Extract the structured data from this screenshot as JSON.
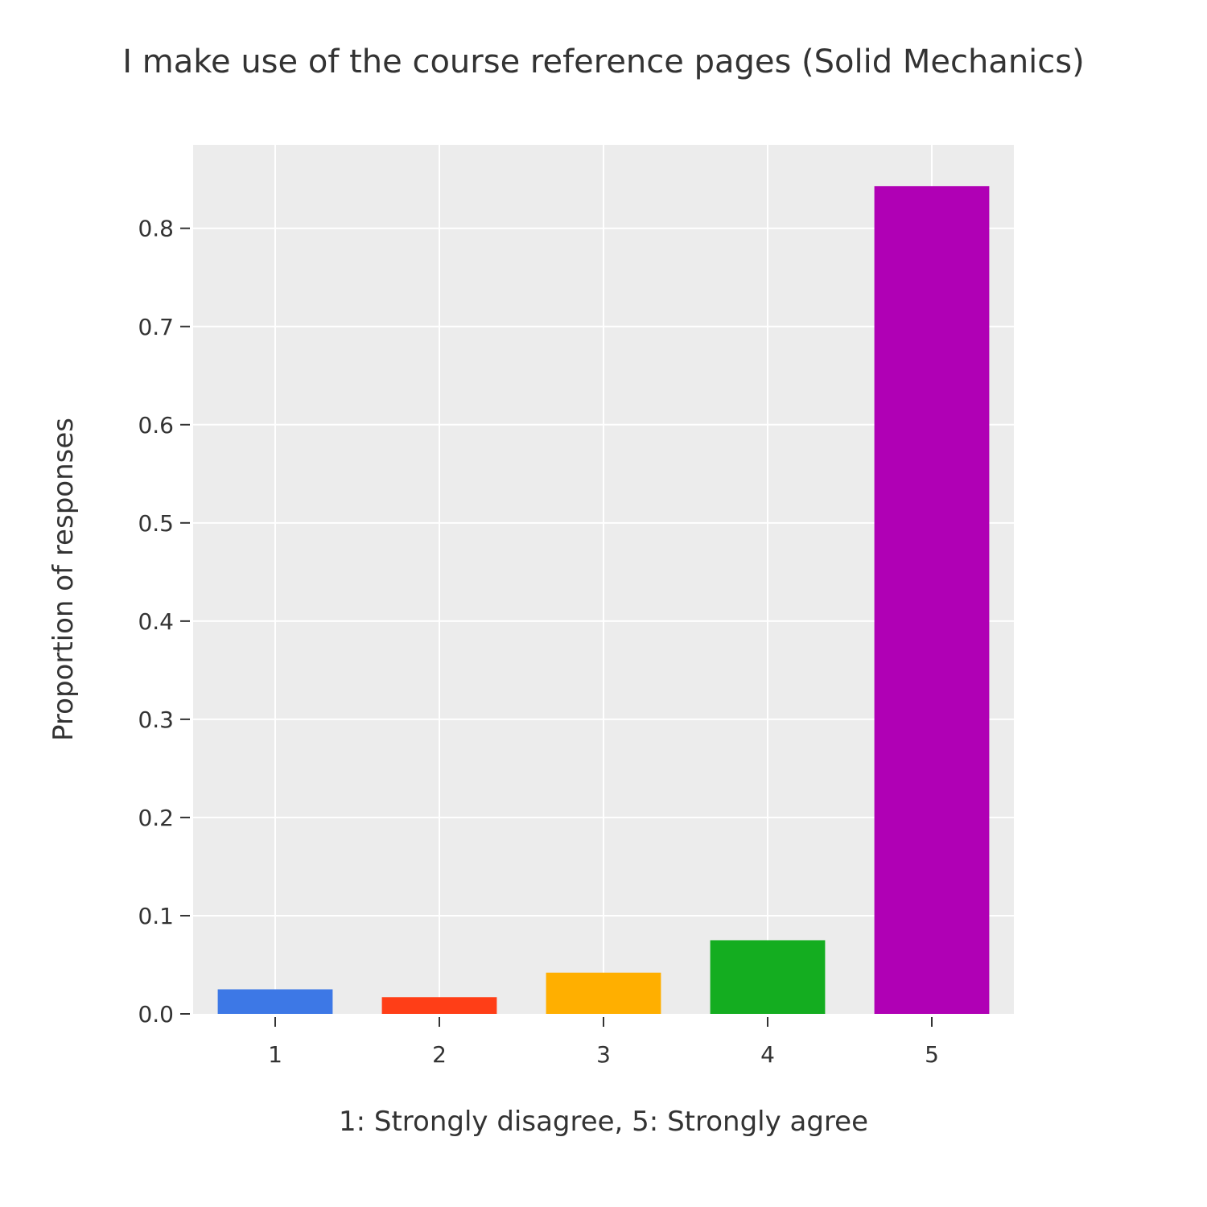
{
  "chart_data": {
    "type": "bar",
    "title": "I make use of the course reference pages (Solid Mechanics)",
    "xlabel": "1: Strongly disagree, 5: Strongly agree",
    "ylabel": "Proportion of responses",
    "categories": [
      "1",
      "2",
      "3",
      "4",
      "5"
    ],
    "values": [
      0.025,
      0.017,
      0.042,
      0.075,
      0.843
    ],
    "colors": [
      "#3d78e6",
      "#ff3e17",
      "#ffaf00",
      "#14ad20",
      "#b000b5"
    ],
    "ylim": [
      0,
      0.885
    ],
    "yticks": [
      0.0,
      0.1,
      0.2,
      0.3,
      0.4,
      0.5,
      0.6,
      0.7,
      0.8
    ],
    "ytick_labels": [
      "0.0",
      "0.1",
      "0.2",
      "0.3",
      "0.4",
      "0.5",
      "0.6",
      "0.7",
      "0.8"
    ],
    "grid": true,
    "plot_background": "#ececec",
    "grid_color": "#ffffff",
    "legend": "none"
  }
}
